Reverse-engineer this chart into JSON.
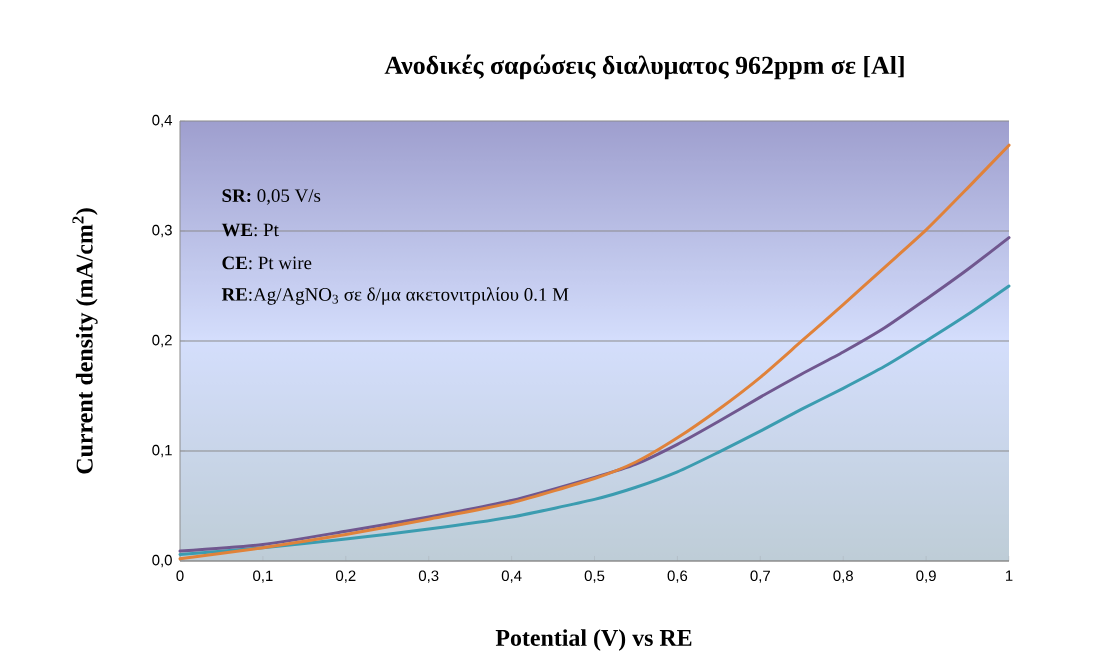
{
  "chart_data": {
    "type": "line",
    "title": "Ανοδικές σαρώσεις διαλυματος 962ppm  σε [Al]",
    "xlabel": "Potential (V) vs RE",
    "ylabel": "Current density (mA/cm$^{2}$)",
    "annotations": [
      "**SR:** 0,05 V/s",
      "**WE**: Pt",
      "**CE**: Pt wire",
      "**RE**:Ag/AgNO$_{3}$  σε δ/μα ακετονιτριλίου 0.1 M"
    ],
    "xlim": [
      0,
      1
    ],
    "ylim": [
      0,
      0.4
    ],
    "xticks": [
      0,
      {
        "value": 0.1,
        "label": "0,1"
      },
      {
        "value": 0.2,
        "label": "0,2"
      },
      {
        "value": 0.3,
        "label": "0,3"
      },
      {
        "value": 0.4,
        "label": "0,4"
      },
      {
        "value": 0.5,
        "label": "0,5"
      },
      {
        "value": 0.6,
        "label": "0,6"
      },
      {
        "value": 0.7,
        "label": "0,7"
      },
      {
        "value": 0.8,
        "label": "0,8"
      },
      {
        "value": 0.9,
        "label": "0,9"
      },
      1
    ],
    "yticks": [
      {
        "value": 0,
        "label": "0,0"
      },
      {
        "value": 0.1,
        "label": "0,1"
      },
      {
        "value": 0.2,
        "label": "0,2"
      },
      {
        "value": 0.3,
        "label": "0,3"
      },
      {
        "value": 0.4,
        "label": "0,4"
      }
    ],
    "grid": "y",
    "x": [
      0,
      0.1,
      0.2,
      0.3,
      0.4,
      0.5,
      0.55,
      0.6,
      0.65,
      0.7,
      0.75,
      0.8,
      0.85,
      0.9,
      0.95,
      1
    ],
    "series": [
      {
        "color": "#3b9cb0",
        "values": [
          0.006,
          0.012,
          0.02,
          0.029,
          0.04,
          0.056,
          0.067,
          0.081,
          0.099,
          0.118,
          0.138,
          0.157,
          0.177,
          0.2,
          0.224,
          0.25
        ]
      },
      {
        "color": "#70578f",
        "values": [
          0.009,
          0.015,
          0.027,
          0.04,
          0.055,
          0.076,
          0.088,
          0.106,
          0.127,
          0.149,
          0.17,
          0.19,
          0.212,
          0.238,
          0.265,
          0.294
        ]
      },
      {
        "color": "#e0823a",
        "values": [
          0.002,
          0.012,
          0.024,
          0.038,
          0.053,
          0.075,
          0.09,
          0.112,
          0.138,
          0.167,
          0.2,
          0.233,
          0.267,
          0.301,
          0.339,
          0.378
        ]
      }
    ]
  }
}
